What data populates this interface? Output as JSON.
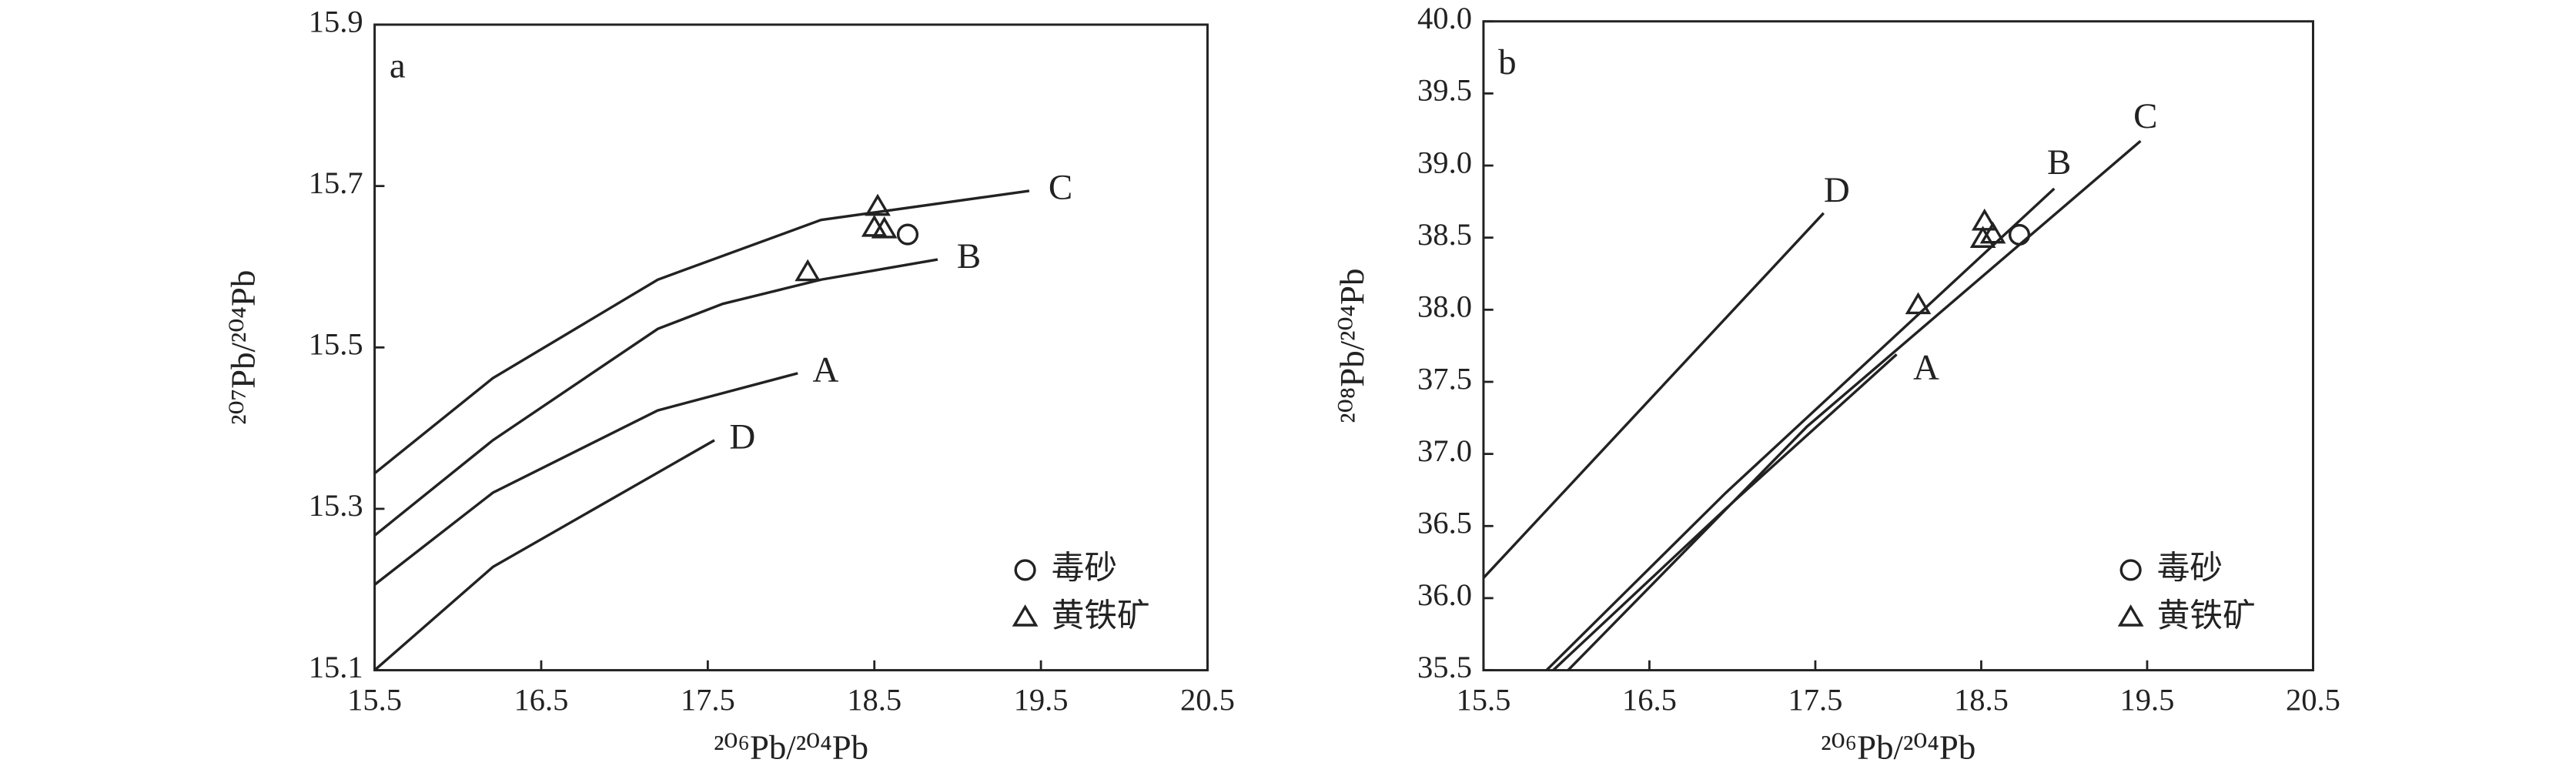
{
  "chart_data": [
    {
      "type": "scatter",
      "panel": "a",
      "x_label": "²⁰⁶Pb/²⁰⁴Pb",
      "y_label": "²⁰⁷Pb/²⁰⁴Pb",
      "xlim": [
        15.5,
        20.5
      ],
      "ylim": [
        15.1,
        15.9
      ],
      "xticks": [
        15.5,
        16.5,
        17.5,
        18.5,
        19.5,
        20.5
      ],
      "yticks": [
        15.1,
        15.3,
        15.5,
        15.7,
        15.9
      ],
      "legend": "lower right",
      "series": [
        {
          "name": "毒砂",
          "marker": "circle",
          "color": "#222222",
          "x": [
            18.7
          ],
          "y": [
            15.64
          ]
        },
        {
          "name": "黄铁矿",
          "marker": "triangle",
          "color": "#222222",
          "x": [
            18.52,
            18.5,
            18.56,
            18.1
          ],
          "y": [
            15.674,
            15.648,
            15.646,
            15.593
          ]
        }
      ],
      "curves": [
        {
          "label": "C",
          "x": [
            15.5,
            16.21,
            17.2,
            18.18,
            19.43
          ],
          "y": [
            15.344,
            15.462,
            15.584,
            15.658,
            15.694
          ]
        },
        {
          "label": "B",
          "x": [
            15.5,
            16.21,
            17.2,
            17.59,
            18.18,
            18.88
          ],
          "y": [
            15.267,
            15.385,
            15.523,
            15.554,
            15.584,
            15.609
          ]
        },
        {
          "label": "A",
          "x": [
            15.5,
            16.21,
            17.2,
            18.04
          ],
          "y": [
            15.206,
            15.32,
            15.422,
            15.468
          ]
        },
        {
          "label": "D",
          "x": [
            15.5,
            16.21,
            17.54
          ],
          "y": [
            15.1,
            15.228,
            15.385
          ]
        }
      ]
    },
    {
      "type": "scatter",
      "panel": "b",
      "x_label": "²⁰⁶Pb/²⁰⁴Pb",
      "y_label": "²⁰⁸Pb/²⁰⁴Pb",
      "xlim": [
        15.5,
        20.5
      ],
      "ylim": [
        35.5,
        40.0
      ],
      "xticks": [
        15.5,
        16.5,
        17.5,
        18.5,
        19.5,
        20.5
      ],
      "yticks": [
        35.5,
        {
          "value": 36,
          "label": "36.0"
        },
        36.5,
        {
          "value": 37,
          "label": "37.0"
        },
        37.5,
        {
          "value": 38,
          "label": "38.0"
        },
        38.5,
        {
          "value": 39,
          "label": "39.0"
        },
        39.5,
        {
          "value": 40,
          "label": "40.0"
        }
      ],
      "legend": "lower right",
      "series": [
        {
          "name": "毒砂",
          "marker": "circle",
          "color": "#222222",
          "x": [
            18.73
          ],
          "y": [
            38.52
          ]
        },
        {
          "name": "黄铁矿",
          "marker": "triangle",
          "color": "#222222",
          "x": [
            18.52,
            18.51,
            18.57,
            18.12
          ],
          "y": [
            38.61,
            38.49,
            38.52,
            38.03
          ]
        }
      ],
      "curves": [
        {
          "label": "D",
          "x": [
            15.5,
            17.55
          ],
          "y": [
            36.14,
            38.67
          ]
        },
        {
          "label": "C",
          "x": [
            16.01,
            17.45,
            19.46
          ],
          "y": [
            35.5,
            37.19,
            39.17
          ]
        },
        {
          "label": "B",
          "x": [
            15.88,
            16.96,
            18.94
          ],
          "y": [
            35.5,
            36.73,
            38.84
          ]
        },
        {
          "label": "A",
          "x": [
            15.92,
            16.96,
            17.99
          ],
          "y": [
            35.5,
            36.62,
            37.69
          ]
        }
      ]
    }
  ]
}
